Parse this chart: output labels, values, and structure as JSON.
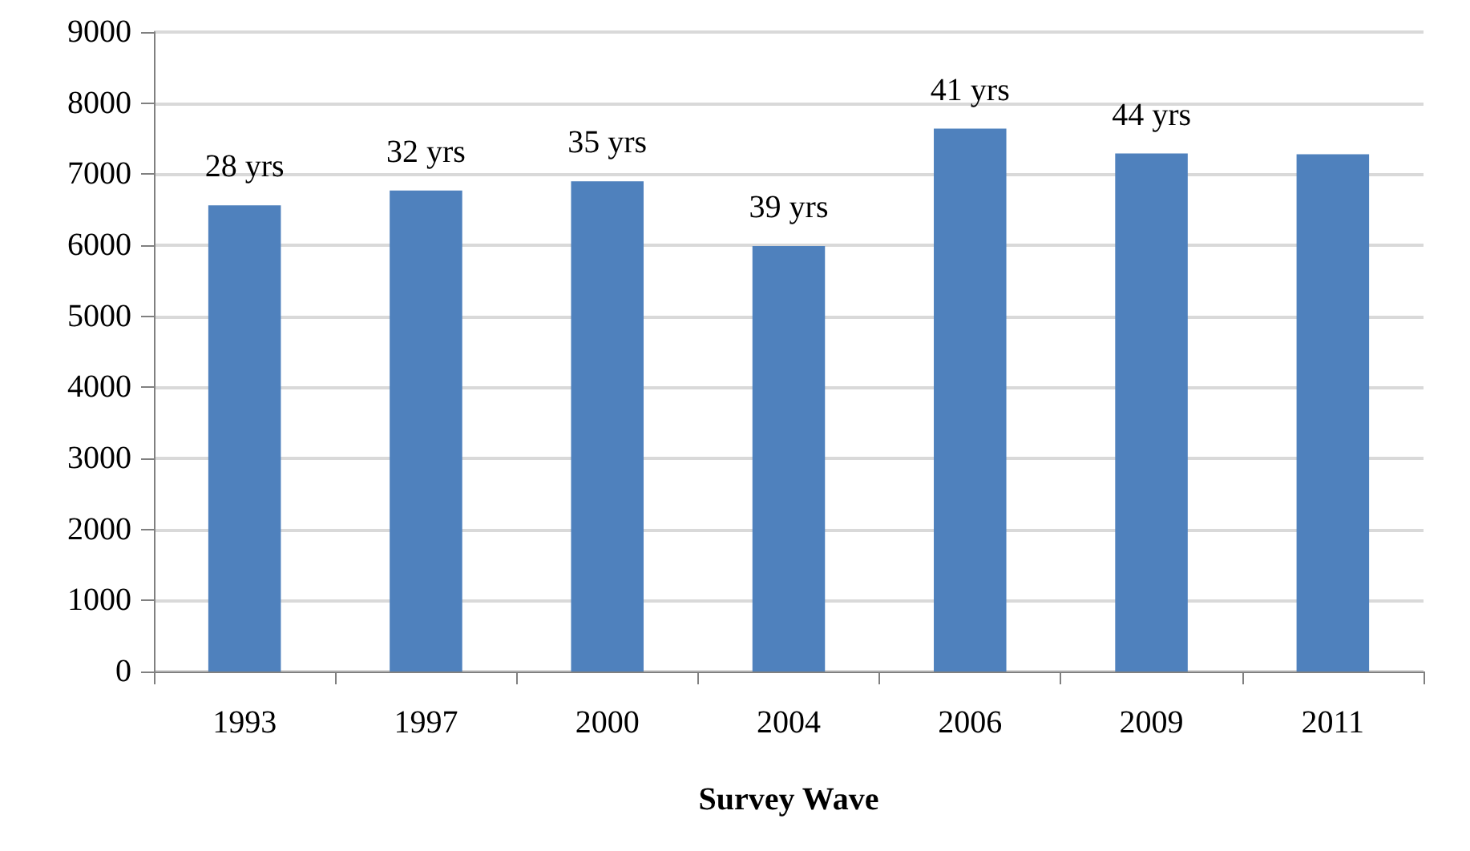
{
  "chart_data": {
    "type": "bar",
    "xlabel": "Survey Wave",
    "categories": [
      "1993",
      "1997",
      "2000",
      "2004",
      "2006",
      "2009",
      "2011"
    ],
    "values": [
      6560,
      6770,
      6900,
      5990,
      7640,
      7290,
      7280
    ],
    "annotations": [
      {
        "text": "28 yrs",
        "x": "1993",
        "y": 6560
      },
      {
        "text": "32 yrs",
        "x": "1997",
        "y": 6770
      },
      {
        "text": "35 yrs",
        "x": "2000",
        "y": 6900
      },
      {
        "text": "39 yrs",
        "x": "2004",
        "y": 5990
      },
      {
        "text": "41 yrs",
        "x": "2006",
        "y": 7640
      },
      {
        "text": "44 yrs",
        "x": "2009",
        "y": 7290
      }
    ],
    "color": "#4f81bd",
    "ylim": [
      0,
      9000
    ],
    "yticks": [
      0,
      1000,
      2000,
      3000,
      4000,
      5000,
      6000,
      7000,
      8000,
      9000
    ],
    "grid": "y"
  }
}
